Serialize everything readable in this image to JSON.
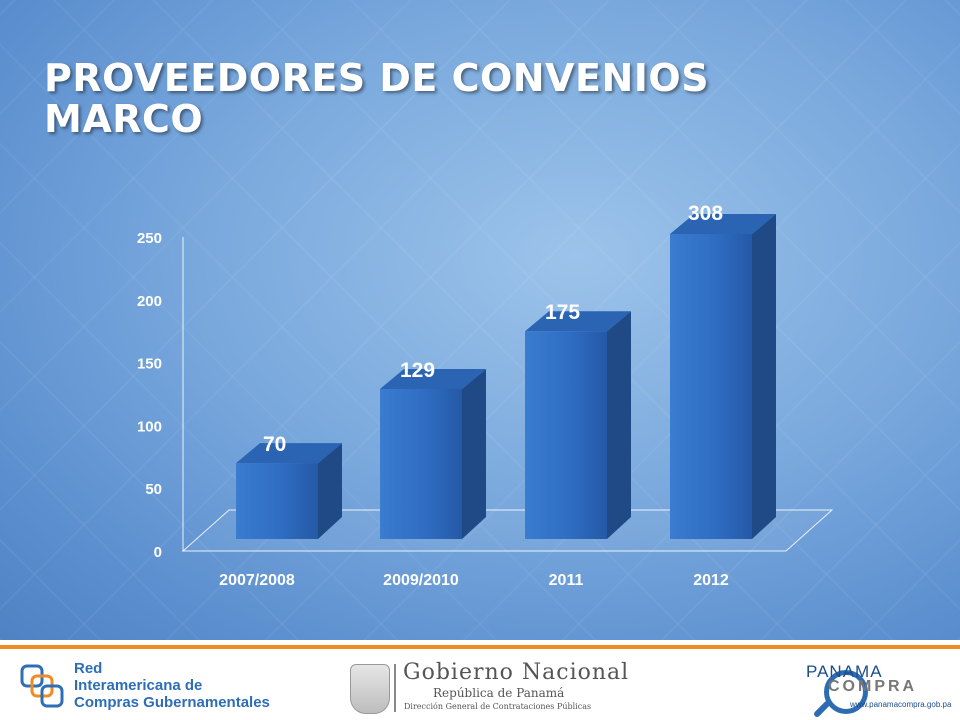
{
  "slide": {
    "title_line1": "PROVEEDORES DE CONVENIOS",
    "title_line2": "MARCO"
  },
  "chart_data": {
    "type": "bar",
    "categories": [
      "2007/2008",
      "2009/2010",
      "2011",
      "2012"
    ],
    "values": [
      70,
      129,
      175,
      308
    ],
    "data_labels": [
      "70",
      "129",
      "175",
      "308"
    ],
    "title": "",
    "xlabel": "",
    "ylabel": "",
    "ylim": [
      0,
      250
    ],
    "yticks": [
      0,
      50,
      100,
      150,
      200,
      250
    ],
    "ytick_labels": [
      "0",
      "50",
      "100",
      "150",
      "200",
      "250"
    ],
    "style": "3d",
    "grid": false,
    "legend": "none",
    "bar_color": "#2f6fc7"
  },
  "footer": {
    "org1_line1": "Red",
    "org1_line2": "Interamericana de",
    "org1_line3": "Compras Gubernamentales",
    "gov_title": "Gobierno Nacional",
    "gov_subtitle": "República de Panamá",
    "gov_subtitle2": "Dirección General de Contrataciones Públicas",
    "pc_brand_top": "PANAMA",
    "pc_brand_bottom": "COMPRA",
    "pc_url": "www.panamacompra.gob.pa",
    "accent_color": "#f08a24"
  }
}
